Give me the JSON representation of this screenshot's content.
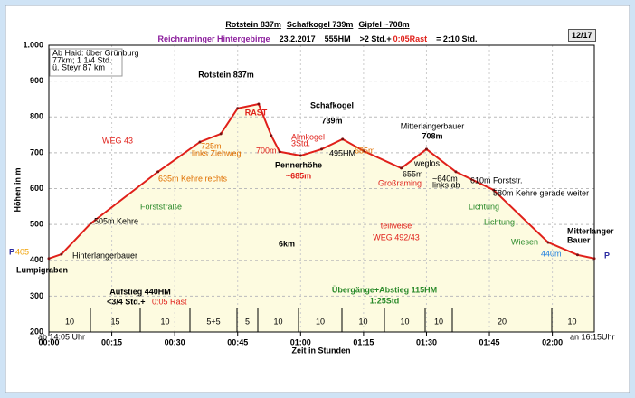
{
  "page_badge": "12/17",
  "chart_data": {
    "type": "area",
    "title": [
      "Rotstein 837m",
      "Schafkogel 739m",
      "Gipfel ~708m"
    ],
    "subtitle": [
      "Reichraminger Hintergebirge",
      "23.2.2017",
      "555HM",
      ">2 Std.+",
      "0:05Rast",
      "= 2:10 Std."
    ],
    "x_label": "Zeit in Stunden",
    "y_label": "Höhen in m",
    "x": [
      0,
      3,
      10,
      26,
      36,
      41,
      45,
      50,
      53,
      55,
      60,
      65,
      70,
      75,
      84,
      90,
      97,
      106,
      119,
      126,
      130
    ],
    "values": [
      405,
      417,
      503,
      647,
      730,
      753,
      824,
      836,
      748,
      703,
      692,
      710,
      738,
      705,
      657,
      710,
      647,
      596,
      450,
      415,
      405
    ],
    "color": "#e0201a",
    "fill": "#fdfbe0",
    "xlim": [
      0,
      130
    ],
    "xticks": [
      {
        "value": 0,
        "label": "00:00"
      },
      {
        "value": 15,
        "label": "00:15"
      },
      {
        "value": 30,
        "label": "00:30"
      },
      {
        "value": 45,
        "label": "00:45"
      },
      {
        "value": 60,
        "label": "01:00"
      },
      {
        "value": 75,
        "label": "01:15"
      },
      {
        "value": 90,
        "label": "01:30"
      },
      {
        "value": 105,
        "label": "01:45"
      },
      {
        "value": 120,
        "label": "02:00"
      }
    ],
    "ylim": [
      200,
      1000
    ],
    "yticks": [
      200,
      300,
      400,
      500,
      600,
      700,
      800,
      900,
      {
        "value": 1000,
        "label": "1.000"
      }
    ],
    "grid": true,
    "segments": [
      "10",
      "15",
      "10",
      "5+5",
      "5",
      "10",
      "10",
      "10",
      "10",
      "10",
      "20",
      "10"
    ],
    "annotations": [
      "Ab Haid: über Grünburg",
      "77km; 1 1/4 Std.",
      "ü. Steyr 87 km",
      "Rotstein 837m",
      "Schafkogel",
      "739m",
      "Mitterlangerbauer",
      "708m",
      "WEG 43",
      "725m",
      "links Ziehweg",
      "635m Kehre rechts",
      "505m Kehre",
      "Hinterlangerbauer",
      "Forststraße",
      "700m",
      "Almkogel",
      "3Std.",
      "Pennerhöhe",
      "~685m",
      "495HM",
      "685m",
      "655m",
      "Großraming",
      "weglos",
      "~640m",
      "links ab",
      "610m Forststr.",
      "580m Kehre gerade weiter",
      "teilweise",
      "WEG 492/43",
      "Lichtung",
      "Lichtung",
      "Wiesen",
      "440m",
      "Mitterlanger",
      "Bauer",
      "6km",
      "Lumpigraben",
      "405",
      "Aufstieg 440HM",
      "<3/4 Std.+",
      "0:05 Rast",
      "Übergänge+Abstieg 115HM",
      "1:25Std",
      "ab 14:05 Uhr",
      "an 16:15Uhr",
      "P",
      "P",
      "RAST"
    ]
  }
}
